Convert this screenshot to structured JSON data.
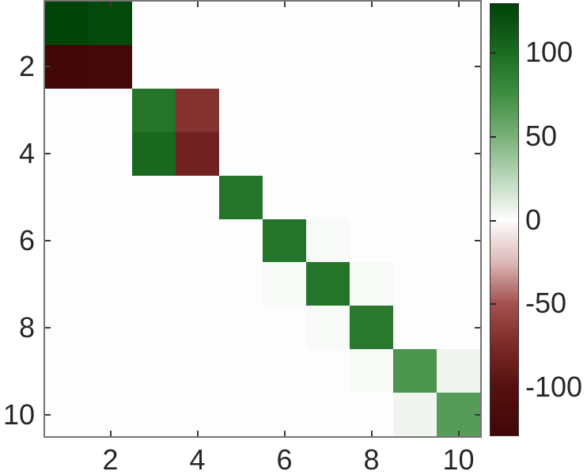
{
  "figure": {
    "background": "#ffffff",
    "frame_color": "#757575",
    "tick_color": "#3a3a3a",
    "text_color": "#262626"
  },
  "chart_data": {
    "type": "heatmap",
    "title": "",
    "xlabel": "",
    "ylabel": "",
    "grid": false,
    "legend": "none",
    "n_rows": 10,
    "n_cols": 10,
    "x_range": [
      0.5,
      10.5
    ],
    "y_range": [
      0.5,
      10.5
    ],
    "x_tick_values": [
      2,
      4,
      6,
      8,
      10
    ],
    "x_tick_labels": [
      "2",
      "4",
      "6",
      "8",
      "10"
    ],
    "y_tick_values": [
      2,
      4,
      6,
      8,
      10
    ],
    "y_tick_labels": [
      "2",
      "4",
      "6",
      "8",
      "10"
    ],
    "clim": [
      -129.5,
      129.5
    ],
    "matrix": [
      [
        129,
        125,
        0,
        0,
        0,
        0,
        0,
        0,
        0,
        0
      ],
      [
        -129,
        -125,
        0,
        0,
        0,
        0,
        0,
        0,
        0,
        0
      ],
      [
        0,
        0,
        94,
        -70,
        0,
        0,
        0,
        0,
        0,
        0
      ],
      [
        0,
        0,
        102,
        -83,
        0,
        0,
        0,
        0,
        0,
        0
      ],
      [
        0,
        0,
        0,
        0,
        94,
        0,
        0,
        0,
        0,
        0
      ],
      [
        0,
        0,
        0,
        0,
        0,
        94,
        2,
        0,
        0,
        0
      ],
      [
        0,
        0,
        0,
        0,
        0,
        2,
        94,
        2,
        0,
        0
      ],
      [
        0,
        0,
        0,
        0,
        0,
        0,
        2,
        90,
        0,
        0
      ],
      [
        0,
        0,
        0,
        0,
        0,
        0,
        0,
        2,
        70,
        5
      ],
      [
        0,
        0,
        0,
        0,
        0,
        0,
        0,
        0,
        5,
        65
      ]
    ],
    "colormap_stops": [
      {
        "v": 129.5,
        "c": "#004208"
      },
      {
        "v": 100,
        "c": "#1c6b22"
      },
      {
        "v": 75,
        "c": "#3f8f43"
      },
      {
        "v": 50,
        "c": "#79b079"
      },
      {
        "v": 25,
        "c": "#bbd7bb"
      },
      {
        "v": 0,
        "c": "#fdfdfd"
      },
      {
        "v": -25,
        "c": "#ddbbba"
      },
      {
        "v": -50,
        "c": "#a45150"
      },
      {
        "v": -75,
        "c": "#7c2a28"
      },
      {
        "v": -100,
        "c": "#551110"
      },
      {
        "v": -129.5,
        "c": "#420607"
      }
    ],
    "colorbar": {
      "tick_values": [
        100,
        50,
        0,
        -50,
        -100
      ],
      "tick_labels": [
        "100",
        "50",
        "0",
        "-50",
        "-100"
      ]
    }
  }
}
